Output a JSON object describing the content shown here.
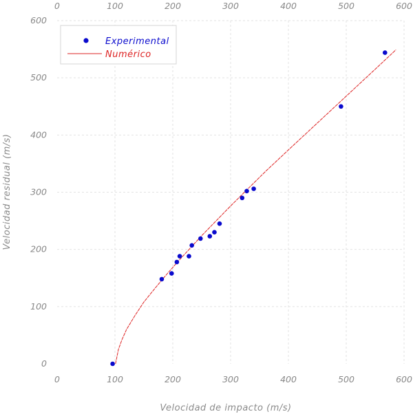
{
  "chart_data": {
    "type": "scatter",
    "title": "",
    "xlabel": "Velocidad de impacto (m/s)",
    "ylabel": "Velocidad residual (m/s)",
    "xlim": [
      0,
      600
    ],
    "ylim": [
      0,
      600
    ],
    "xticks": [
      "0",
      "100",
      "200",
      "300",
      "400",
      "500",
      "600"
    ],
    "yticks": [
      "0",
      "100",
      "200",
      "300",
      "400",
      "500",
      "600"
    ],
    "grid": true,
    "legend_position": "top-left",
    "series": [
      {
        "name": "Experimental",
        "kind": "points",
        "color": "#0a0acd",
        "points": [
          [
            96,
            0
          ],
          [
            181,
            148
          ],
          [
            198,
            158
          ],
          [
            207,
            178
          ],
          [
            212,
            188
          ],
          [
            228,
            188
          ],
          [
            233,
            207
          ],
          [
            248,
            219
          ],
          [
            264,
            223
          ],
          [
            272,
            230
          ],
          [
            281,
            245
          ],
          [
            320,
            290
          ],
          [
            328,
            302
          ],
          [
            340,
            306
          ],
          [
            491,
            450
          ],
          [
            567,
            544
          ]
        ]
      },
      {
        "name": "Numérico",
        "kind": "line",
        "color": "#dd2222",
        "points": [
          [
            101,
            0
          ],
          [
            103,
            10
          ],
          [
            106,
            25
          ],
          [
            112,
            42
          ],
          [
            120,
            60
          ],
          [
            135,
            85
          ],
          [
            150,
            108
          ],
          [
            170,
            133
          ],
          [
            190,
            157
          ],
          [
            210,
            180
          ],
          [
            230,
            202
          ],
          [
            250,
            224
          ],
          [
            275,
            250
          ],
          [
            300,
            276
          ],
          [
            330,
            306
          ],
          [
            360,
            336
          ],
          [
            400,
            374
          ],
          [
            450,
            421
          ],
          [
            500,
            468
          ],
          [
            550,
            515
          ],
          [
            586,
            549
          ]
        ]
      }
    ]
  }
}
